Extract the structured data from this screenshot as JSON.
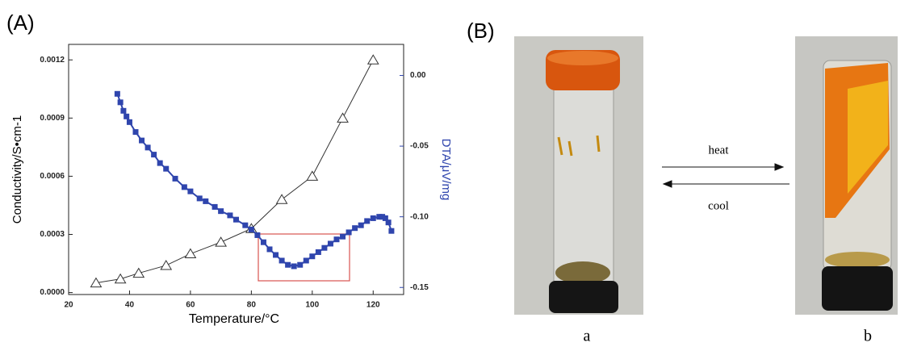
{
  "panels": {
    "a": "(A)",
    "b": "(B)"
  },
  "chart_data": {
    "type": "line",
    "x_label": "Temperature/°C",
    "y_label": "Conductivity/S•cm-1",
    "y2_label": "DTA/μV/mg",
    "xlim": [
      20,
      130
    ],
    "xticks": [
      20,
      40,
      60,
      80,
      100,
      120
    ],
    "ylim": [
      -1e-05,
      0.00128
    ],
    "yticks": [
      {
        "value": 0,
        "label": "0.0000"
      },
      {
        "value": 0.0003,
        "label": "0.0003"
      },
      {
        "value": 0.0006,
        "label": "0.0006"
      },
      {
        "value": 0.0009,
        "label": "0.0009"
      },
      {
        "value": 0.0012,
        "label": "0.0012"
      }
    ],
    "y2lim": [
      -0.155,
      0.022
    ],
    "y2ticks": [
      {
        "value": 0,
        "label": "0.00"
      },
      {
        "value": -0.05,
        "label": "-0.05"
      },
      {
        "value": -0.1,
        "label": "-0.10"
      },
      {
        "value": -0.15,
        "label": "-0.15"
      }
    ],
    "series": [
      {
        "color": "#333333",
        "marker": "triangle",
        "x": [
          29,
          37,
          43,
          52,
          60,
          70,
          80,
          90,
          100,
          110,
          120
        ],
        "values": [
          5e-05,
          7e-05,
          0.0001,
          0.00014,
          0.0002,
          0.00026,
          0.00033,
          0.00048,
          0.0006,
          0.0009,
          0.0012
        ]
      },
      {
        "color": "#2f45ad",
        "marker": "square",
        "axis": "y2",
        "x": [
          36,
          37,
          38,
          39,
          40,
          42,
          44,
          46,
          48,
          50,
          52,
          55,
          58,
          60,
          63,
          65,
          68,
          70,
          73,
          75,
          78,
          80,
          82,
          84,
          86,
          88,
          90,
          92,
          94,
          96,
          98,
          100,
          102,
          104,
          106,
          108,
          110,
          112,
          114,
          116,
          118,
          120,
          122,
          123,
          124,
          125,
          126
        ],
        "values": [
          -0.013,
          -0.019,
          -0.025,
          -0.029,
          -0.033,
          -0.04,
          -0.046,
          -0.051,
          -0.056,
          -0.062,
          -0.066,
          -0.073,
          -0.079,
          -0.082,
          -0.087,
          -0.089,
          -0.093,
          -0.096,
          -0.099,
          -0.102,
          -0.106,
          -0.109,
          -0.113,
          -0.118,
          -0.123,
          -0.127,
          -0.131,
          -0.134,
          -0.135,
          -0.134,
          -0.131,
          -0.128,
          -0.125,
          -0.122,
          -0.119,
          -0.116,
          -0.114,
          -0.111,
          -0.108,
          -0.106,
          -0.103,
          -0.101,
          -0.1,
          -0.1,
          -0.101,
          -0.104,
          -0.11
        ]
      }
    ]
  },
  "photos": {
    "heat": "heat",
    "cool": "cool",
    "captions": [
      "a",
      "b"
    ]
  }
}
